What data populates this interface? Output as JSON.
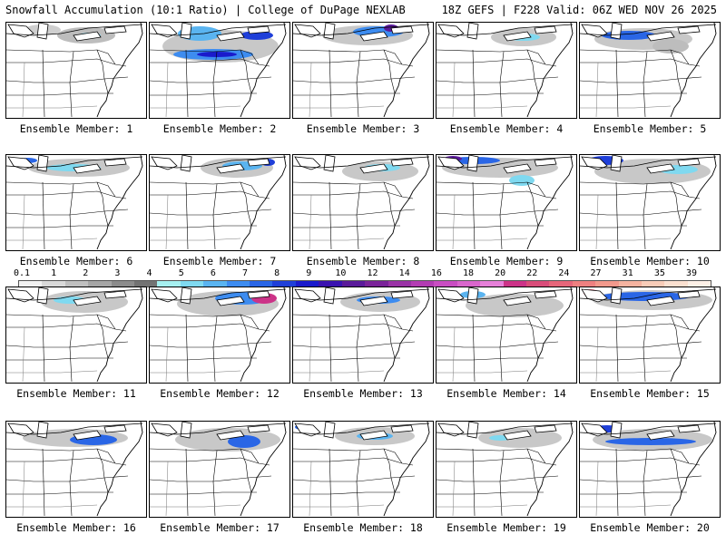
{
  "header": {
    "title_left": "Snowfall Accumulation (10:1 Ratio) | College of DuPage NEXLAB",
    "title_right": "18Z GEFS | F228 Valid: 06Z WED NOV 26 2025"
  },
  "colorbar": {
    "labels": [
      "0.1",
      "1",
      "2",
      "3",
      "4",
      "5",
      "6",
      "7",
      "8",
      "9",
      "10",
      "12",
      "14",
      "16",
      "18",
      "20",
      "22",
      "24",
      "27",
      "31",
      "35",
      "39"
    ],
    "colors": [
      "#f2f2f2",
      "#d9d9d9",
      "#bfbfbf",
      "#a6a6a6",
      "#8c8c8c",
      "#737373",
      "#a6f0f0",
      "#7fd9f0",
      "#5ab4f0",
      "#3d8cf0",
      "#2a66e6",
      "#1f3fd9",
      "#1a1acc",
      "#3a12b0",
      "#5a1a9a",
      "#7a2399",
      "#9a33a6",
      "#b33cb3",
      "#c94dc2",
      "#d966cc",
      "#e680d9",
      "#cc3388",
      "#d94d7a",
      "#e6667a",
      "#ee8080",
      "#f2998c",
      "#f5b3a0",
      "#f8ccb8",
      "#fbe0d0",
      "#fdf0e6"
    ]
  },
  "panels": [
    {
      "label": "Ensemble Member: 1",
      "blobs": [
        {
          "cx": 88,
          "cy": 14,
          "rx": 32,
          "ry": 9,
          "c": "#bdbdbd"
        },
        {
          "cx": 92,
          "cy": 14,
          "rx": 12,
          "ry": 3,
          "c": "#7fd9f0"
        },
        {
          "cx": 40,
          "cy": 8,
          "rx": 20,
          "ry": 6,
          "c": "#cfcfcf"
        }
      ]
    },
    {
      "label": "Ensemble Member: 2",
      "blobs": [
        {
          "cx": 78,
          "cy": 26,
          "rx": 64,
          "ry": 18,
          "c": "#c8c8c8"
        },
        {
          "cx": 70,
          "cy": 35,
          "rx": 44,
          "ry": 6,
          "c": "#3d8cf0"
        },
        {
          "cx": 74,
          "cy": 35,
          "rx": 22,
          "ry": 3,
          "c": "#1a1acc"
        },
        {
          "cx": 55,
          "cy": 12,
          "rx": 24,
          "ry": 8,
          "c": "#5ab4f0"
        },
        {
          "cx": 118,
          "cy": 14,
          "rx": 18,
          "ry": 5,
          "c": "#1f3fd9"
        }
      ]
    },
    {
      "label": "Ensemble Member: 3",
      "blobs": [
        {
          "cx": 82,
          "cy": 14,
          "rx": 50,
          "ry": 11,
          "c": "#c8c8c8"
        },
        {
          "cx": 94,
          "cy": 10,
          "rx": 28,
          "ry": 6,
          "c": "#3d8cf0"
        },
        {
          "cx": 108,
          "cy": 6,
          "rx": 8,
          "ry": 4,
          "c": "#5a1a9a"
        }
      ]
    },
    {
      "label": "Ensemble Member: 4",
      "blobs": [
        {
          "cx": 96,
          "cy": 16,
          "rx": 36,
          "ry": 10,
          "c": "#c8c8c8"
        },
        {
          "cx": 96,
          "cy": 16,
          "rx": 18,
          "ry": 4,
          "c": "#7fd9f0"
        }
      ]
    },
    {
      "label": "Ensemble Member: 5",
      "blobs": [
        {
          "cx": 70,
          "cy": 18,
          "rx": 54,
          "ry": 12,
          "c": "#c8c8c8"
        },
        {
          "cx": 54,
          "cy": 14,
          "rx": 30,
          "ry": 5,
          "c": "#2a66e6"
        },
        {
          "cx": 100,
          "cy": 26,
          "rx": 20,
          "ry": 8,
          "c": "#bdbdbd"
        }
      ]
    },
    {
      "label": "Ensemble Member: 6",
      "blobs": [
        {
          "cx": 80,
          "cy": 14,
          "rx": 56,
          "ry": 10,
          "c": "#c8c8c8"
        },
        {
          "cx": 74,
          "cy": 14,
          "rx": 30,
          "ry": 4,
          "c": "#7fd9f0"
        },
        {
          "cx": 24,
          "cy": 6,
          "rx": 10,
          "ry": 3,
          "c": "#2a66e6"
        }
      ]
    },
    {
      "label": "Ensemble Member: 7",
      "blobs": [
        {
          "cx": 96,
          "cy": 14,
          "rx": 40,
          "ry": 11,
          "c": "#c8c8c8"
        },
        {
          "cx": 102,
          "cy": 12,
          "rx": 22,
          "ry": 5,
          "c": "#5ab4f0"
        },
        {
          "cx": 130,
          "cy": 8,
          "rx": 8,
          "ry": 4,
          "c": "#1f3fd9"
        }
      ]
    },
    {
      "label": "Ensemble Member: 8",
      "blobs": [
        {
          "cx": 96,
          "cy": 18,
          "rx": 42,
          "ry": 11,
          "c": "#c8c8c8"
        },
        {
          "cx": 98,
          "cy": 14,
          "rx": 20,
          "ry": 4,
          "c": "#7fd9f0"
        }
      ]
    },
    {
      "label": "Ensemble Member: 9",
      "blobs": [
        {
          "cx": 70,
          "cy": 14,
          "rx": 64,
          "ry": 11,
          "c": "#c8c8c8"
        },
        {
          "cx": 40,
          "cy": 6,
          "rx": 30,
          "ry": 4,
          "c": "#2a66e6"
        },
        {
          "cx": 18,
          "cy": 4,
          "rx": 10,
          "ry": 3,
          "c": "#5a1a9a"
        },
        {
          "cx": 94,
          "cy": 28,
          "rx": 14,
          "ry": 6,
          "c": "#7fd9f0"
        }
      ]
    },
    {
      "label": "Ensemble Member: 10",
      "blobs": [
        {
          "cx": 80,
          "cy": 18,
          "rx": 64,
          "ry": 14,
          "c": "#c8c8c8"
        },
        {
          "cx": 28,
          "cy": 6,
          "rx": 20,
          "ry": 5,
          "c": "#1f3fd9"
        },
        {
          "cx": 108,
          "cy": 16,
          "rx": 22,
          "ry": 5,
          "c": "#7fd9f0"
        }
      ]
    },
    {
      "label": "Ensemble Member: 11",
      "blobs": [
        {
          "cx": 86,
          "cy": 16,
          "rx": 48,
          "ry": 12,
          "c": "#c8c8c8"
        },
        {
          "cx": 70,
          "cy": 14,
          "rx": 18,
          "ry": 4,
          "c": "#7fd9f0"
        }
      ]
    },
    {
      "label": "Ensemble Member: 12",
      "blobs": [
        {
          "cx": 86,
          "cy": 18,
          "rx": 56,
          "ry": 14,
          "c": "#c8c8c8"
        },
        {
          "cx": 102,
          "cy": 12,
          "rx": 30,
          "ry": 7,
          "c": "#3d8cf0"
        },
        {
          "cx": 126,
          "cy": 12,
          "rx": 14,
          "ry": 6,
          "c": "#cc3388"
        }
      ]
    },
    {
      "label": "Ensemble Member: 13",
      "blobs": [
        {
          "cx": 96,
          "cy": 16,
          "rx": 44,
          "ry": 11,
          "c": "#c8c8c8"
        },
        {
          "cx": 94,
          "cy": 14,
          "rx": 24,
          "ry": 4,
          "c": "#3d8cf0"
        }
      ]
    },
    {
      "label": "Ensemble Member: 14",
      "blobs": [
        {
          "cx": 86,
          "cy": 20,
          "rx": 54,
          "ry": 13,
          "c": "#c8c8c8"
        },
        {
          "cx": 40,
          "cy": 8,
          "rx": 14,
          "ry": 4,
          "c": "#5ab4f0"
        }
      ]
    },
    {
      "label": "Ensemble Member: 15",
      "blobs": [
        {
          "cx": 80,
          "cy": 14,
          "rx": 66,
          "ry": 11,
          "c": "#c8c8c8"
        },
        {
          "cx": 72,
          "cy": 10,
          "rx": 50,
          "ry": 5,
          "c": "#2a66e6"
        },
        {
          "cx": 12,
          "cy": 6,
          "rx": 8,
          "ry": 4,
          "c": "#e6667a"
        }
      ]
    },
    {
      "label": "Ensemble Member: 16",
      "blobs": [
        {
          "cx": 76,
          "cy": 18,
          "rx": 58,
          "ry": 10,
          "c": "#c8c8c8"
        },
        {
          "cx": 96,
          "cy": 20,
          "rx": 26,
          "ry": 6,
          "c": "#2a66e6"
        },
        {
          "cx": 16,
          "cy": 8,
          "rx": 8,
          "ry": 4,
          "c": "#3d8cf0"
        }
      ]
    },
    {
      "label": "Ensemble Member: 17",
      "blobs": [
        {
          "cx": 86,
          "cy": 20,
          "rx": 58,
          "ry": 13,
          "c": "#c8c8c8"
        },
        {
          "cx": 104,
          "cy": 22,
          "rx": 18,
          "ry": 7,
          "c": "#2a66e6"
        }
      ]
    },
    {
      "label": "Ensemble Member: 18",
      "blobs": [
        {
          "cx": 90,
          "cy": 16,
          "rx": 44,
          "ry": 10,
          "c": "#c8c8c8"
        },
        {
          "cx": 90,
          "cy": 16,
          "rx": 20,
          "ry": 4,
          "c": "#5ab4f0"
        },
        {
          "cx": 10,
          "cy": 6,
          "rx": 8,
          "ry": 3,
          "c": "#2a66e6"
        }
      ]
    },
    {
      "label": "Ensemble Member: 19",
      "blobs": [
        {
          "cx": 92,
          "cy": 18,
          "rx": 46,
          "ry": 11,
          "c": "#c8c8c8"
        },
        {
          "cx": 70,
          "cy": 18,
          "rx": 12,
          "ry": 3,
          "c": "#7fd9f0"
        }
      ]
    },
    {
      "label": "Ensemble Member: 20",
      "blobs": [
        {
          "cx": 80,
          "cy": 20,
          "rx": 66,
          "ry": 12,
          "c": "#c8c8c8"
        },
        {
          "cx": 78,
          "cy": 22,
          "rx": 50,
          "ry": 4,
          "c": "#2a66e6"
        },
        {
          "cx": 30,
          "cy": 8,
          "rx": 16,
          "ry": 4,
          "c": "#1f3fd9"
        }
      ]
    }
  ]
}
